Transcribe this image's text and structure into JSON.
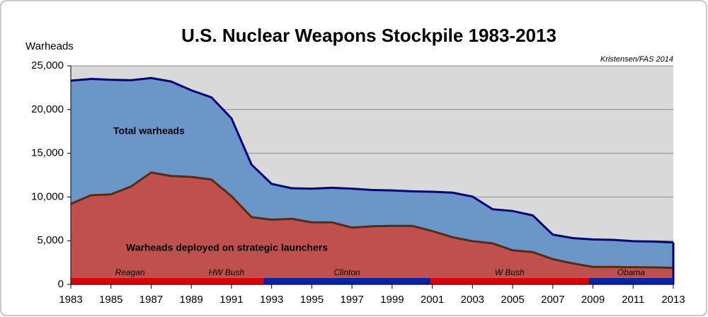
{
  "chart_data": {
    "type": "area",
    "title": "U.S. Nuclear Weapons Stockpile 1983-2013",
    "source": "Kristensen/FAS 2014",
    "y_label": "Warheads",
    "x": [
      1983,
      1984,
      1985,
      1986,
      1987,
      1988,
      1989,
      1990,
      1991,
      1992,
      1993,
      1994,
      1995,
      1996,
      1997,
      1998,
      1999,
      2000,
      2001,
      2002,
      2003,
      2004,
      2005,
      2006,
      2007,
      2008,
      2009,
      2010,
      2011,
      2012,
      2013
    ],
    "series": [
      {
        "name": "Total warheads",
        "color": "#6a96c8",
        "line_color": "#00007a",
        "values": [
          23300,
          23500,
          23400,
          23350,
          23600,
          23200,
          22200,
          21400,
          19000,
          13700,
          11500,
          11000,
          10950,
          11050,
          10950,
          10800,
          10750,
          10650,
          10600,
          10500,
          10050,
          8600,
          8400,
          7900,
          5700,
          5300,
          5150,
          5100,
          4950,
          4900,
          4800
        ]
      },
      {
        "name": "Warheads deployed on strategic launchers",
        "color": "#c0504d",
        "line_color": "#5a2a10",
        "values": [
          9200,
          10200,
          10300,
          11200,
          12800,
          12400,
          12300,
          12000,
          10100,
          7700,
          7400,
          7500,
          7100,
          7100,
          6500,
          6650,
          6700,
          6700,
          6100,
          5400,
          4950,
          4700,
          3900,
          3700,
          2900,
          2400,
          2000,
          2000,
          1970,
          1950,
          1900
        ]
      }
    ],
    "presidents": [
      {
        "name": "Reagan",
        "start": 1983,
        "end": 1988.9,
        "color": "#dd0000"
      },
      {
        "name": "HW Bush",
        "start": 1988.9,
        "end": 1992.6,
        "color": "#dd0000"
      },
      {
        "name": "Clinton",
        "start": 1992.6,
        "end": 2000.9,
        "color": "#0022aa"
      },
      {
        "name": "W Bush",
        "start": 2000.9,
        "end": 2008.8,
        "color": "#dd0000"
      },
      {
        "name": "Obama",
        "start": 2008.8,
        "end": 2013,
        "color": "#0022aa"
      }
    ],
    "xlim": [
      1983,
      2013
    ],
    "xticks": [
      1983,
      1985,
      1987,
      1989,
      1991,
      1993,
      1995,
      1997,
      1999,
      2001,
      2003,
      2005,
      2007,
      2009,
      2011,
      2013
    ],
    "ylim": [
      0,
      25000
    ],
    "yticks": [
      0,
      {
        "value": 5000,
        "label": "5,000"
      },
      {
        "value": 10000,
        "label": "10,000"
      },
      {
        "value": 15000,
        "label": "15,000"
      },
      {
        "value": 20000,
        "label": "20,000"
      },
      {
        "value": 25000,
        "label": "25,000"
      }
    ],
    "grid": true,
    "plot_background": "#d9d9d9"
  }
}
